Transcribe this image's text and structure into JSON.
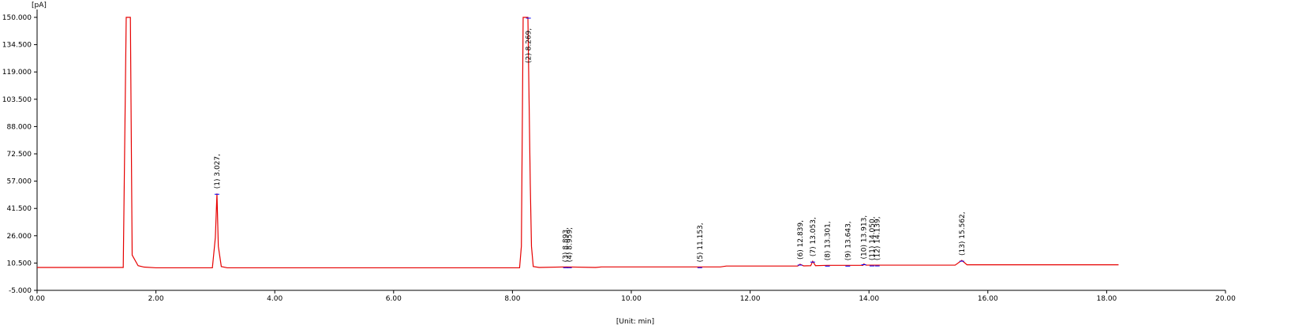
{
  "chart_data": {
    "type": "line",
    "y_label": "[pA]",
    "x_label": "[Unit: min]",
    "xlim": [
      0,
      20
    ],
    "ylim": [
      -5,
      150
    ],
    "xticks": [
      {
        "value": 0,
        "label": "0.00"
      },
      {
        "value": 2,
        "label": "2.00"
      },
      {
        "value": 4,
        "label": "4.00"
      },
      {
        "value": 6,
        "label": "6.00"
      },
      {
        "value": 8,
        "label": "8.00"
      },
      {
        "value": 10,
        "label": "10.00"
      },
      {
        "value": 12,
        "label": "12.00"
      },
      {
        "value": 14,
        "label": "14.00"
      },
      {
        "value": 16,
        "label": "16.00"
      },
      {
        "value": 18,
        "label": "18.00"
      },
      {
        "value": 20,
        "label": "20.00"
      }
    ],
    "yticks": [
      {
        "value": -5,
        "label": "-5.000"
      },
      {
        "value": 10.5,
        "label": "10.500"
      },
      {
        "value": 26,
        "label": "26.000"
      },
      {
        "value": 41.5,
        "label": "41.500"
      },
      {
        "value": 57,
        "label": "57.000"
      },
      {
        "value": 72.5,
        "label": "72.500"
      },
      {
        "value": 88,
        "label": "88.000"
      },
      {
        "value": 103.5,
        "label": "103.500"
      },
      {
        "value": 119,
        "label": "119.000"
      },
      {
        "value": 134.5,
        "label": "134.500"
      },
      {
        "value": 150,
        "label": "150.000"
      }
    ],
    "series": [
      {
        "color": "#e60000",
        "x": [
          0,
          1.45,
          1.5,
          1.57,
          1.6,
          1.7,
          1.8,
          2.0,
          2.95,
          3.0,
          3.027,
          3.05,
          3.1,
          3.2,
          8.12,
          8.15,
          8.18,
          8.26,
          8.3,
          8.32,
          8.35,
          8.45,
          8.9,
          9.4,
          9.5,
          11.5,
          11.6,
          12.8,
          12.84,
          12.9,
          13.02,
          13.053,
          13.1,
          13.3,
          13.9,
          13.913,
          13.95,
          15.45,
          15.562,
          15.65,
          18.2
        ],
        "values": [
          8,
          8,
          150,
          150,
          15,
          9,
          8.2,
          7.8,
          7.8,
          25,
          50,
          20,
          8.5,
          7.8,
          7.8,
          20,
          150,
          150,
          55,
          20,
          8.5,
          8,
          8.3,
          8,
          8.3,
          8.3,
          8.8,
          8.8,
          9.8,
          8.9,
          9,
          11.5,
          9,
          9.2,
          9.2,
          10,
          9.3,
          9.3,
          12,
          9.5,
          9.5
        ]
      }
    ],
    "annotations": [
      {
        "x": 3.027,
        "text": "(1) 3.027,"
      },
      {
        "x": 8.269,
        "text": "(2) 8.269,"
      },
      {
        "x": 8.893,
        "text": "(3) 8.893,"
      },
      {
        "x": 8.959,
        "text": "(4) 8.959,"
      },
      {
        "x": 11.153,
        "text": "(5) 11.153,"
      },
      {
        "x": 12.839,
        "text": "(6) 12.839,"
      },
      {
        "x": 13.053,
        "text": "(7) 13.053,"
      },
      {
        "x": 13.301,
        "text": "(8) 13.301,"
      },
      {
        "x": 13.643,
        "text": "(9) 13.643,"
      },
      {
        "x": 13.913,
        "text": "(10) 13.913,"
      },
      {
        "x": 14.05,
        "text": "(11) 14.050,"
      },
      {
        "x": 14.139,
        "text": "(12) 14.139,"
      },
      {
        "x": 15.562,
        "text": "(13) 15.562,"
      }
    ]
  }
}
